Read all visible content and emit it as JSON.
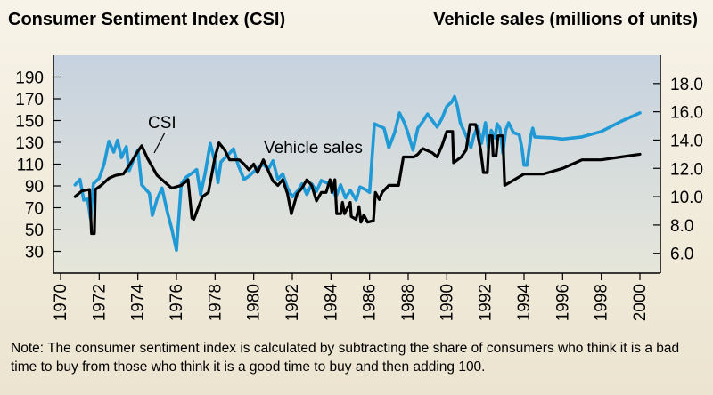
{
  "chart_data": {
    "type": "line",
    "title_left": "Consumer Sentiment Index (CSI)",
    "title_right": "Vehicle sales (millions of units)",
    "xlim": [
      1970,
      2000
    ],
    "x_ticks": [
      "1970",
      "1972",
      "1974",
      "1976",
      "1978",
      "1980",
      "1982",
      "1984",
      "1986",
      "1988",
      "1990",
      "1992",
      "1994",
      "1996",
      "1998",
      "2000"
    ],
    "y_left": {
      "ylim": [
        10,
        210
      ],
      "ticks": [
        "30",
        "50",
        "70",
        "90",
        "110",
        "130",
        "150",
        "170",
        "190"
      ]
    },
    "y_right": {
      "ylim": [
        4.6,
        20.0
      ],
      "ticks": [
        "6.0",
        "8.0",
        "10.0",
        "12.0",
        "14.0",
        "16.0",
        "18.0"
      ]
    },
    "annotations": [
      "CSI",
      "Vehicle sales"
    ],
    "series": [
      {
        "name": "CSI",
        "axis": "left",
        "color": "#1f9ad6",
        "points": [
          [
            1970.75,
            91
          ],
          [
            1971.0,
            96
          ],
          [
            1971.2,
            77
          ],
          [
            1971.4,
            78
          ],
          [
            1971.55,
            60
          ],
          [
            1971.7,
            92
          ],
          [
            1972.0,
            97
          ],
          [
            1972.25,
            110
          ],
          [
            1972.5,
            131
          ],
          [
            1972.75,
            121
          ],
          [
            1972.95,
            132
          ],
          [
            1973.15,
            116
          ],
          [
            1973.4,
            126
          ],
          [
            1973.55,
            104
          ],
          [
            1973.8,
            115
          ],
          [
            1974.0,
            123
          ],
          [
            1974.2,
            91
          ],
          [
            1974.6,
            83
          ],
          [
            1974.75,
            63
          ],
          [
            1975.0,
            78
          ],
          [
            1975.25,
            88
          ],
          [
            1975.5,
            68
          ],
          [
            1975.75,
            51
          ],
          [
            1976.0,
            31
          ],
          [
            1976.25,
            92
          ],
          [
            1976.5,
            98
          ],
          [
            1976.75,
            101
          ],
          [
            1977.05,
            105
          ],
          [
            1977.25,
            82
          ],
          [
            1977.5,
            103
          ],
          [
            1977.75,
            129
          ],
          [
            1978.0,
            112
          ],
          [
            1978.15,
            93
          ],
          [
            1978.3,
            112
          ],
          [
            1978.75,
            120
          ],
          [
            1978.95,
            124
          ],
          [
            1979.2,
            109
          ],
          [
            1979.5,
            96
          ],
          [
            1979.75,
            99
          ],
          [
            1980.0,
            103
          ],
          [
            1980.25,
            107
          ],
          [
            1980.5,
            110
          ],
          [
            1980.75,
            105
          ],
          [
            1981.0,
            113
          ],
          [
            1981.25,
            96
          ],
          [
            1981.5,
            101
          ],
          [
            1981.75,
            88
          ],
          [
            1982.0,
            80
          ],
          [
            1982.3,
            86
          ],
          [
            1982.5,
            92
          ],
          [
            1982.75,
            82
          ],
          [
            1983.0,
            92
          ],
          [
            1983.25,
            85
          ],
          [
            1983.5,
            95
          ],
          [
            1983.75,
            93
          ],
          [
            1984.0,
            91
          ],
          [
            1984.25,
            80
          ],
          [
            1984.5,
            91
          ],
          [
            1984.75,
            79
          ],
          [
            1985.0,
            86
          ],
          [
            1985.3,
            77
          ],
          [
            1985.5,
            89
          ],
          [
            1985.75,
            87
          ],
          [
            1986.0,
            84
          ],
          [
            1986.25,
            147
          ],
          [
            1986.5,
            145
          ],
          [
            1986.75,
            143
          ],
          [
            1987.0,
            125
          ],
          [
            1987.3,
            139
          ],
          [
            1987.55,
            157
          ],
          [
            1987.8,
            148
          ],
          [
            1988.0,
            138
          ],
          [
            1988.25,
            123
          ],
          [
            1988.5,
            143
          ],
          [
            1988.75,
            149
          ],
          [
            1989.0,
            156
          ],
          [
            1989.25,
            150
          ],
          [
            1989.5,
            144
          ],
          [
            1989.75,
            152
          ],
          [
            1990.0,
            163
          ],
          [
            1990.25,
            167
          ],
          [
            1990.4,
            172
          ],
          [
            1990.55,
            163
          ],
          [
            1990.7,
            148
          ],
          [
            1991.0,
            136
          ],
          [
            1991.25,
            125
          ],
          [
            1991.4,
            136
          ],
          [
            1991.6,
            145
          ],
          [
            1991.8,
            129
          ],
          [
            1992.0,
            148
          ],
          [
            1992.15,
            125
          ],
          [
            1992.3,
            141
          ],
          [
            1992.5,
            134
          ],
          [
            1992.6,
            147
          ],
          [
            1992.75,
            143
          ],
          [
            1992.9,
            120
          ],
          [
            1993.05,
            141
          ],
          [
            1993.2,
            148
          ],
          [
            1993.45,
            139
          ],
          [
            1993.75,
            137
          ],
          [
            1993.9,
            124
          ],
          [
            1994.0,
            109
          ],
          [
            1994.15,
            109
          ],
          [
            1994.35,
            136
          ],
          [
            1994.45,
            143
          ],
          [
            1994.55,
            135
          ],
          [
            1995.5,
            134
          ],
          [
            1996.0,
            133
          ],
          [
            1997.0,
            135
          ],
          [
            1998.0,
            140
          ],
          [
            1999.0,
            149
          ],
          [
            2000.0,
            157
          ]
        ]
      },
      {
        "name": "Vehicle sales",
        "axis": "right",
        "color": "#000000",
        "points": [
          [
            1970.75,
            10.0
          ],
          [
            1971.1,
            10.4
          ],
          [
            1971.5,
            10.5
          ],
          [
            1971.6,
            7.4
          ],
          [
            1971.75,
            7.4
          ],
          [
            1971.8,
            10.5
          ],
          [
            1972.1,
            10.8
          ],
          [
            1972.5,
            11.3
          ],
          [
            1972.85,
            11.5
          ],
          [
            1973.25,
            11.6
          ],
          [
            1973.6,
            12.3
          ],
          [
            1974.0,
            13.2
          ],
          [
            1974.2,
            13.6
          ],
          [
            1974.5,
            12.7
          ],
          [
            1975.0,
            11.5
          ],
          [
            1975.5,
            10.9
          ],
          [
            1975.75,
            10.6
          ],
          [
            1976.25,
            10.8
          ],
          [
            1976.6,
            11.2
          ],
          [
            1976.8,
            8.5
          ],
          [
            1976.9,
            8.4
          ],
          [
            1977.15,
            9.3
          ],
          [
            1977.35,
            10.0
          ],
          [
            1977.65,
            10.3
          ],
          [
            1978.0,
            12.8
          ],
          [
            1978.2,
            13.8
          ],
          [
            1978.5,
            13.3
          ],
          [
            1978.75,
            12.6
          ],
          [
            1979.25,
            12.6
          ],
          [
            1979.5,
            12.3
          ],
          [
            1979.75,
            11.9
          ],
          [
            1980.0,
            12.3
          ],
          [
            1980.2,
            11.7
          ],
          [
            1980.5,
            12.6
          ],
          [
            1980.8,
            11.7
          ],
          [
            1981.0,
            11.1
          ],
          [
            1981.25,
            10.8
          ],
          [
            1981.5,
            11.2
          ],
          [
            1981.75,
            10.2
          ],
          [
            1981.95,
            8.8
          ],
          [
            1982.25,
            10.2
          ],
          [
            1982.5,
            10.6
          ],
          [
            1982.75,
            11.2
          ],
          [
            1983.0,
            10.8
          ],
          [
            1983.25,
            9.7
          ],
          [
            1983.5,
            10.3
          ],
          [
            1983.75,
            10.3
          ],
          [
            1983.95,
            11.2
          ],
          [
            1984.05,
            10.3
          ],
          [
            1984.2,
            11.2
          ],
          [
            1984.3,
            8.8
          ],
          [
            1984.5,
            8.8
          ],
          [
            1984.6,
            9.6
          ],
          [
            1984.7,
            8.8
          ],
          [
            1985.0,
            9.6
          ],
          [
            1985.05,
            8.6
          ],
          [
            1985.3,
            8.4
          ],
          [
            1985.45,
            9.3
          ],
          [
            1985.55,
            8.2
          ],
          [
            1985.7,
            8.7
          ],
          [
            1985.9,
            8.2
          ],
          [
            1986.2,
            8.3
          ],
          [
            1986.3,
            10.3
          ],
          [
            1986.5,
            9.8
          ],
          [
            1986.65,
            10.3
          ],
          [
            1987.0,
            10.8
          ],
          [
            1987.5,
            10.8
          ],
          [
            1987.75,
            12.8
          ],
          [
            1988.3,
            12.8
          ],
          [
            1988.5,
            13.0
          ],
          [
            1988.75,
            13.4
          ],
          [
            1989.25,
            13.1
          ],
          [
            1989.5,
            12.8
          ],
          [
            1989.75,
            13.6
          ],
          [
            1990.0,
            14.6
          ],
          [
            1990.3,
            14.6
          ],
          [
            1990.35,
            12.4
          ],
          [
            1990.75,
            12.8
          ],
          [
            1991.0,
            13.3
          ],
          [
            1991.2,
            15.1
          ],
          [
            1991.5,
            15.1
          ],
          [
            1991.75,
            13.3
          ],
          [
            1991.9,
            11.7
          ],
          [
            1992.1,
            11.7
          ],
          [
            1992.2,
            14.3
          ],
          [
            1992.35,
            14.3
          ],
          [
            1992.4,
            12.9
          ],
          [
            1992.55,
            12.9
          ],
          [
            1992.65,
            14.3
          ],
          [
            1992.9,
            14.3
          ],
          [
            1993.0,
            10.8
          ],
          [
            1993.5,
            11.2
          ],
          [
            1994.0,
            11.6
          ],
          [
            1995.0,
            11.6
          ],
          [
            1996.0,
            12.0
          ],
          [
            1996.5,
            12.3
          ],
          [
            1997.0,
            12.6
          ],
          [
            1998.0,
            12.6
          ],
          [
            1999.0,
            12.8
          ],
          [
            2000.0,
            13.0
          ]
        ]
      }
    ]
  },
  "note": "Note: The consumer sentiment index is calculated by subtracting the share of consumers who think it is a bad time to buy from those who think it is a good time to buy and then adding 100."
}
